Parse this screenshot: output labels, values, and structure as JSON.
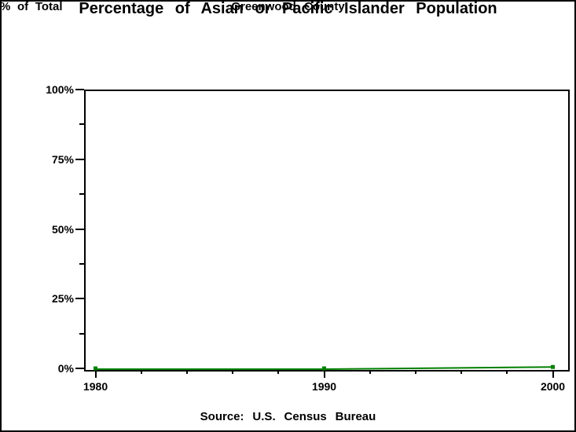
{
  "window": {
    "background_color": "#ffffff",
    "frame_color": "#000000"
  },
  "chart_data": {
    "type": "line",
    "title": "Percentage of Asian or Pacific Islander Population",
    "subtitle": "Greenwood County",
    "ylabel": "% of Total",
    "footnote": "Source: U.S. Census Bureau",
    "x": [
      1980,
      1990,
      2000
    ],
    "x_tick_labels": [
      "1980",
      "1990",
      "2000"
    ],
    "x_minor_ticks": [
      1982,
      1984,
      1986,
      1988,
      1992,
      1994,
      1996,
      1998
    ],
    "xlim": [
      1979.5,
      2000.6
    ],
    "ylim": [
      0,
      100
    ],
    "y_major_ticks": [
      {
        "value": 0,
        "label": "0%"
      },
      {
        "value": 25,
        "label": "25%"
      },
      {
        "value": 50,
        "label": "50%"
      },
      {
        "value": 75,
        "label": "75%"
      },
      {
        "value": 100,
        "label": "100%"
      }
    ],
    "y_minor_ticks": [
      12.5,
      37.5,
      62.5,
      87.5
    ],
    "grid": false,
    "legend": "none",
    "series": [
      {
        "color": "#008000",
        "marker": "square",
        "values": [
          0.0,
          0.0,
          0.5
        ]
      }
    ]
  }
}
